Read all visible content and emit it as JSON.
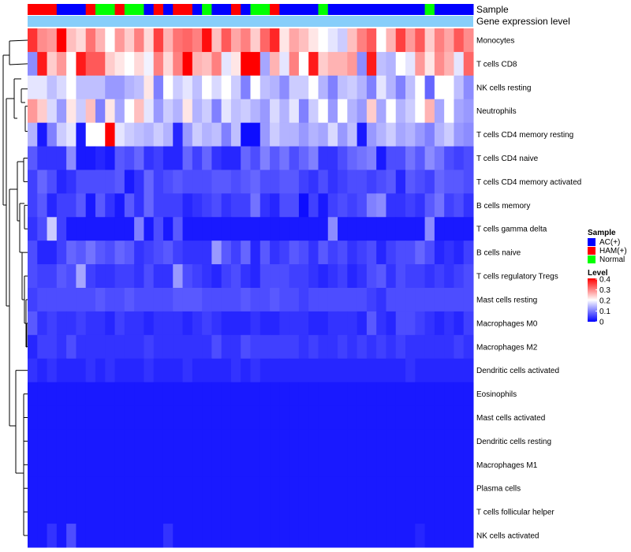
{
  "chart_data": {
    "type": "heatmap",
    "annotations": {
      "sample_label": "Sample",
      "expression_label": "Gene expression level",
      "sample_groups": [
        "HAM(+)",
        "HAM(+)",
        "HAM(+)",
        "AC(+)",
        "AC(+)",
        "AC(+)",
        "HAM(+)",
        "Normal",
        "Normal",
        "HAM(+)",
        "Normal",
        "Normal",
        "AC(+)",
        "HAM(+)",
        "AC(+)",
        "HAM(+)",
        "HAM(+)",
        "AC(+)",
        "Normal",
        "AC(+)",
        "AC(+)",
        "HAM(+)",
        "AC(+)",
        "Normal",
        "Normal",
        "HAM(+)",
        "AC(+)",
        "AC(+)",
        "AC(+)",
        "AC(+)",
        "Normal",
        "AC(+)",
        "AC(+)",
        "AC(+)",
        "AC(+)",
        "AC(+)",
        "AC(+)",
        "AC(+)",
        "AC(+)",
        "AC(+)",
        "AC(+)",
        "Normal",
        "AC(+)",
        "AC(+)",
        "AC(+)",
        "AC(+)"
      ]
    },
    "rows": [
      "Monocytes",
      "T cells CD8",
      "NK cells resting",
      "Neutrophils",
      "T cells CD4 memory resting",
      "T cells CD4 naive",
      "T cells CD4 memory activated",
      "B cells memory",
      "T cells gamma delta",
      "B cells naive",
      "T cells regulatory  Tregs",
      "Mast cells resting",
      "Macrophages M0",
      "Macrophages M2",
      "Dendritic cells activated",
      "Eosinophils",
      "Mast cells activated",
      "Dendritic cells resting",
      "Macrophages M1",
      "Plasma cells",
      "T cells follicular helper",
      "NK cells activated"
    ],
    "values": [
      [
        0.36,
        0.29,
        0.28,
        0.4,
        0.25,
        0.23,
        0.31,
        0.26,
        0.2,
        0.28,
        0.24,
        0.3,
        0.23,
        0.35,
        0.26,
        0.31,
        0.32,
        0.3,
        0.39,
        0.25,
        0.33,
        0.27,
        0.3,
        0.24,
        0.32,
        0.37,
        0.22,
        0.27,
        0.25,
        0.22,
        0.2,
        0.18,
        0.16,
        0.25,
        0.3,
        0.33,
        0.2,
        0.26,
        0.35,
        0.28,
        0.33,
        0.24,
        0.3,
        0.27,
        0.33,
        0.29
      ],
      [
        0.11,
        0.38,
        0.24,
        0.28,
        0.2,
        0.38,
        0.33,
        0.33,
        0.24,
        0.22,
        0.2,
        0.23,
        0.19,
        0.3,
        0.23,
        0.3,
        0.4,
        0.26,
        0.25,
        0.3,
        0.18,
        0.22,
        0.4,
        0.4,
        0.13,
        0.26,
        0.18,
        0.3,
        0.2,
        0.38,
        0.24,
        0.26,
        0.26,
        0.28,
        0.11,
        0.38,
        0.15,
        0.14,
        0.2,
        0.18,
        0.28,
        0.22,
        0.29,
        0.26,
        0.18,
        0.32
      ],
      [
        0.18,
        0.18,
        0.15,
        0.17,
        0.2,
        0.15,
        0.15,
        0.15,
        0.12,
        0.12,
        0.14,
        0.15,
        0.22,
        0.1,
        0.2,
        0.16,
        0.18,
        0.15,
        0.2,
        0.17,
        0.2,
        0.16,
        0.1,
        0.2,
        0.15,
        0.14,
        0.11,
        0.16,
        0.16,
        0.2,
        0.14,
        0.1,
        0.15,
        0.16,
        0.14,
        0.1,
        0.18,
        0.14,
        0.1,
        0.15,
        0.2,
        0.08,
        0.2,
        0.2,
        0.15,
        0.11
      ],
      [
        0.28,
        0.24,
        0.17,
        0.12,
        0.22,
        0.16,
        0.25,
        0.1,
        0.22,
        0.13,
        0.2,
        0.25,
        0.18,
        0.12,
        0.16,
        0.14,
        0.22,
        0.14,
        0.16,
        0.1,
        0.18,
        0.15,
        0.16,
        0.14,
        0.12,
        0.17,
        0.14,
        0.18,
        0.1,
        0.16,
        0.2,
        0.12,
        0.2,
        0.14,
        0.12,
        0.24,
        0.13,
        0.2,
        0.14,
        0.16,
        0.2,
        0.26,
        0.13,
        0.2,
        0.13,
        0.12
      ],
      [
        0.14,
        0.02,
        0.1,
        0.16,
        0.18,
        0.02,
        0.2,
        0.2,
        0.4,
        0.18,
        0.16,
        0.15,
        0.14,
        0.16,
        0.14,
        0.03,
        0.12,
        0.16,
        0.14,
        0.15,
        0.1,
        0.15,
        0.01,
        0.01,
        0.12,
        0.16,
        0.14,
        0.14,
        0.12,
        0.14,
        0.13,
        0.17,
        0.12,
        0.15,
        0.02,
        0.12,
        0.14,
        0.16,
        0.13,
        0.14,
        0.12,
        0.1,
        0.14,
        0.16,
        0.12,
        0.11
      ],
      [
        0.07,
        0.04,
        0.04,
        0.04,
        0.11,
        0.02,
        0.02,
        0.03,
        0.02,
        0.07,
        0.06,
        0.08,
        0.04,
        0.05,
        0.03,
        0.03,
        0.08,
        0.05,
        0.08,
        0.04,
        0.03,
        0.03,
        0.08,
        0.06,
        0.1,
        0.07,
        0.09,
        0.06,
        0.08,
        0.1,
        0.04,
        0.04,
        0.06,
        0.08,
        0.09,
        0.1,
        0.02,
        0.06,
        0.06,
        0.09,
        0.07,
        0.11,
        0.09,
        0.06,
        0.05,
        0.06
      ],
      [
        0.05,
        0.08,
        0.06,
        0.03,
        0.04,
        0.06,
        0.06,
        0.06,
        0.06,
        0.07,
        0.02,
        0.04,
        0.08,
        0.05,
        0.06,
        0.07,
        0.06,
        0.06,
        0.06,
        0.07,
        0.07,
        0.06,
        0.07,
        0.08,
        0.06,
        0.06,
        0.07,
        0.07,
        0.05,
        0.04,
        0.06,
        0.04,
        0.05,
        0.06,
        0.06,
        0.05,
        0.06,
        0.07,
        0.03,
        0.07,
        0.06,
        0.05,
        0.08,
        0.07,
        0.07,
        0.06
      ],
      [
        0.05,
        0.07,
        0.03,
        0.05,
        0.05,
        0.07,
        0.02,
        0.07,
        0.04,
        0.02,
        0.07,
        0.04,
        0.08,
        0.05,
        0.05,
        0.05,
        0.03,
        0.04,
        0.05,
        0.06,
        0.04,
        0.05,
        0.05,
        0.09,
        0.04,
        0.03,
        0.06,
        0.06,
        0.01,
        0.05,
        0.02,
        0.05,
        0.06,
        0.05,
        0.06,
        0.1,
        0.11,
        0.04,
        0.04,
        0.05,
        0.04,
        0.07,
        0.09,
        0.05,
        0.06,
        0.04
      ],
      [
        0.04,
        0.06,
        0.16,
        0.05,
        0.02,
        0.02,
        0.02,
        0.02,
        0.02,
        0.02,
        0.02,
        0.1,
        0.02,
        0.06,
        0.02,
        0.07,
        0.02,
        0.02,
        0.02,
        0.02,
        0.02,
        0.02,
        0.02,
        0.02,
        0.02,
        0.02,
        0.02,
        0.02,
        0.02,
        0.02,
        0.02,
        0.11,
        0.02,
        0.02,
        0.02,
        0.02,
        0.02,
        0.02,
        0.02,
        0.02,
        0.02,
        0.11,
        0.02,
        0.02,
        0.02,
        0.02
      ],
      [
        0.06,
        0.03,
        0.03,
        0.05,
        0.08,
        0.07,
        0.09,
        0.07,
        0.06,
        0.08,
        0.07,
        0.04,
        0.05,
        0.06,
        0.07,
        0.05,
        0.04,
        0.04,
        0.04,
        0.12,
        0.07,
        0.05,
        0.08,
        0.03,
        0.07,
        0.04,
        0.05,
        0.07,
        0.06,
        0.04,
        0.07,
        0.05,
        0.06,
        0.04,
        0.05,
        0.06,
        0.03,
        0.05,
        0.06,
        0.06,
        0.08,
        0.06,
        0.03,
        0.04,
        0.03,
        0.05
      ],
      [
        0.06,
        0.05,
        0.05,
        0.07,
        0.06,
        0.13,
        0.05,
        0.04,
        0.04,
        0.05,
        0.05,
        0.04,
        0.06,
        0.04,
        0.04,
        0.12,
        0.06,
        0.05,
        0.04,
        0.03,
        0.05,
        0.06,
        0.04,
        0.03,
        0.06,
        0.06,
        0.06,
        0.05,
        0.05,
        0.04,
        0.03,
        0.04,
        0.05,
        0.03,
        0.04,
        0.06,
        0.07,
        0.04,
        0.06,
        0.05,
        0.05,
        0.04,
        0.05,
        0.04,
        0.05,
        0.06
      ],
      [
        0.05,
        0.06,
        0.06,
        0.06,
        0.06,
        0.06,
        0.06,
        0.07,
        0.06,
        0.06,
        0.07,
        0.06,
        0.06,
        0.06,
        0.06,
        0.07,
        0.07,
        0.07,
        0.06,
        0.06,
        0.06,
        0.06,
        0.07,
        0.06,
        0.06,
        0.07,
        0.06,
        0.06,
        0.05,
        0.06,
        0.06,
        0.06,
        0.06,
        0.06,
        0.06,
        0.05,
        0.04,
        0.06,
        0.06,
        0.06,
        0.06,
        0.06,
        0.06,
        0.06,
        0.06,
        0.06
      ],
      [
        0.07,
        0.04,
        0.05,
        0.04,
        0.04,
        0.05,
        0.04,
        0.04,
        0.03,
        0.05,
        0.04,
        0.04,
        0.03,
        0.04,
        0.04,
        0.04,
        0.03,
        0.04,
        0.05,
        0.04,
        0.03,
        0.03,
        0.03,
        0.04,
        0.03,
        0.03,
        0.04,
        0.04,
        0.04,
        0.03,
        0.03,
        0.04,
        0.04,
        0.04,
        0.03,
        0.07,
        0.04,
        0.03,
        0.06,
        0.06,
        0.05,
        0.04,
        0.03,
        0.04,
        0.03,
        0.05
      ],
      [
        0.03,
        0.05,
        0.05,
        0.04,
        0.06,
        0.04,
        0.04,
        0.04,
        0.04,
        0.04,
        0.04,
        0.04,
        0.05,
        0.04,
        0.04,
        0.04,
        0.04,
        0.04,
        0.04,
        0.06,
        0.04,
        0.04,
        0.06,
        0.05,
        0.05,
        0.05,
        0.05,
        0.05,
        0.04,
        0.05,
        0.04,
        0.04,
        0.05,
        0.04,
        0.05,
        0.04,
        0.05,
        0.04,
        0.05,
        0.04,
        0.04,
        0.04,
        0.04,
        0.04,
        0.05,
        0.04
      ],
      [
        0.04,
        0.03,
        0.04,
        0.03,
        0.03,
        0.03,
        0.04,
        0.03,
        0.04,
        0.03,
        0.03,
        0.03,
        0.04,
        0.03,
        0.03,
        0.03,
        0.04,
        0.03,
        0.03,
        0.03,
        0.03,
        0.04,
        0.03,
        0.04,
        0.03,
        0.03,
        0.03,
        0.03,
        0.03,
        0.03,
        0.03,
        0.03,
        0.03,
        0.03,
        0.03,
        0.03,
        0.03,
        0.03,
        0.03,
        0.04,
        0.03,
        0.03,
        0.03,
        0.03,
        0.03,
        0.03
      ],
      [
        0.02,
        0.02,
        0.02,
        0.02,
        0.02,
        0.02,
        0.02,
        0.02,
        0.02,
        0.02,
        0.02,
        0.02,
        0.02,
        0.02,
        0.02,
        0.02,
        0.02,
        0.02,
        0.02,
        0.02,
        0.02,
        0.02,
        0.02,
        0.02,
        0.02,
        0.02,
        0.02,
        0.02,
        0.02,
        0.02,
        0.02,
        0.02,
        0.02,
        0.02,
        0.02,
        0.02,
        0.02,
        0.02,
        0.02,
        0.02,
        0.02,
        0.02,
        0.02,
        0.02,
        0.02,
        0.02
      ],
      [
        0.02,
        0.02,
        0.02,
        0.02,
        0.02,
        0.02,
        0.02,
        0.02,
        0.02,
        0.02,
        0.02,
        0.02,
        0.02,
        0.02,
        0.02,
        0.02,
        0.02,
        0.02,
        0.02,
        0.02,
        0.02,
        0.02,
        0.02,
        0.02,
        0.02,
        0.02,
        0.02,
        0.02,
        0.02,
        0.02,
        0.02,
        0.02,
        0.02,
        0.02,
        0.02,
        0.02,
        0.02,
        0.02,
        0.02,
        0.02,
        0.02,
        0.02,
        0.02,
        0.02,
        0.02,
        0.02
      ],
      [
        0.02,
        0.02,
        0.02,
        0.02,
        0.02,
        0.02,
        0.02,
        0.02,
        0.02,
        0.02,
        0.02,
        0.02,
        0.02,
        0.02,
        0.02,
        0.02,
        0.02,
        0.02,
        0.02,
        0.02,
        0.02,
        0.02,
        0.02,
        0.02,
        0.02,
        0.02,
        0.02,
        0.02,
        0.02,
        0.02,
        0.02,
        0.02,
        0.02,
        0.02,
        0.02,
        0.02,
        0.02,
        0.02,
        0.02,
        0.02,
        0.02,
        0.02,
        0.02,
        0.02,
        0.02,
        0.02
      ],
      [
        0.02,
        0.02,
        0.02,
        0.02,
        0.02,
        0.02,
        0.02,
        0.02,
        0.02,
        0.02,
        0.02,
        0.02,
        0.02,
        0.02,
        0.02,
        0.02,
        0.02,
        0.02,
        0.02,
        0.02,
        0.02,
        0.02,
        0.02,
        0.02,
        0.02,
        0.02,
        0.02,
        0.02,
        0.02,
        0.02,
        0.02,
        0.02,
        0.02,
        0.02,
        0.02,
        0.02,
        0.02,
        0.02,
        0.02,
        0.02,
        0.02,
        0.02,
        0.02,
        0.02,
        0.02,
        0.02
      ],
      [
        0.02,
        0.02,
        0.02,
        0.02,
        0.02,
        0.02,
        0.02,
        0.02,
        0.02,
        0.02,
        0.02,
        0.02,
        0.02,
        0.02,
        0.02,
        0.02,
        0.02,
        0.02,
        0.02,
        0.02,
        0.02,
        0.02,
        0.02,
        0.02,
        0.02,
        0.02,
        0.02,
        0.02,
        0.02,
        0.02,
        0.02,
        0.02,
        0.02,
        0.02,
        0.02,
        0.02,
        0.02,
        0.02,
        0.02,
        0.02,
        0.02,
        0.02,
        0.02,
        0.02,
        0.02,
        0.02
      ],
      [
        0.02,
        0.02,
        0.02,
        0.02,
        0.02,
        0.02,
        0.02,
        0.02,
        0.02,
        0.02,
        0.02,
        0.02,
        0.02,
        0.02,
        0.02,
        0.02,
        0.02,
        0.02,
        0.02,
        0.02,
        0.02,
        0.02,
        0.02,
        0.02,
        0.02,
        0.02,
        0.02,
        0.02,
        0.02,
        0.02,
        0.02,
        0.02,
        0.02,
        0.02,
        0.02,
        0.02,
        0.02,
        0.02,
        0.02,
        0.02,
        0.02,
        0.02,
        0.02,
        0.02,
        0.02,
        0.02
      ],
      [
        0.02,
        0.02,
        0.04,
        0.02,
        0.06,
        0.02,
        0.02,
        0.02,
        0.02,
        0.02,
        0.02,
        0.02,
        0.02,
        0.02,
        0.04,
        0.02,
        0.02,
        0.02,
        0.02,
        0.02,
        0.02,
        0.02,
        0.02,
        0.02,
        0.02,
        0.02,
        0.02,
        0.02,
        0.02,
        0.02,
        0.02,
        0.02,
        0.02,
        0.02,
        0.02,
        0.02,
        0.02,
        0.02,
        0.02,
        0.02,
        0.03,
        0.02,
        0.02,
        0.02,
        0.02,
        0.02
      ]
    ],
    "legend": {
      "sample_title": "Sample",
      "groups": [
        {
          "name": "AC(+)",
          "color": "#0000ff"
        },
        {
          "name": "HAM(+)",
          "color": "#ff0000"
        },
        {
          "name": "Normal",
          "color": "#00ff00"
        }
      ],
      "level_title": "Level",
      "level_ticks": [
        "0.4",
        "0.3",
        "0.2",
        "0.1",
        "0"
      ],
      "level_range": [
        0,
        0.4
      ]
    },
    "colors": {
      "low": "#0000ff",
      "mid": "#ffffff",
      "high": "#ff0000",
      "expression_bar": "#87cefa"
    }
  }
}
